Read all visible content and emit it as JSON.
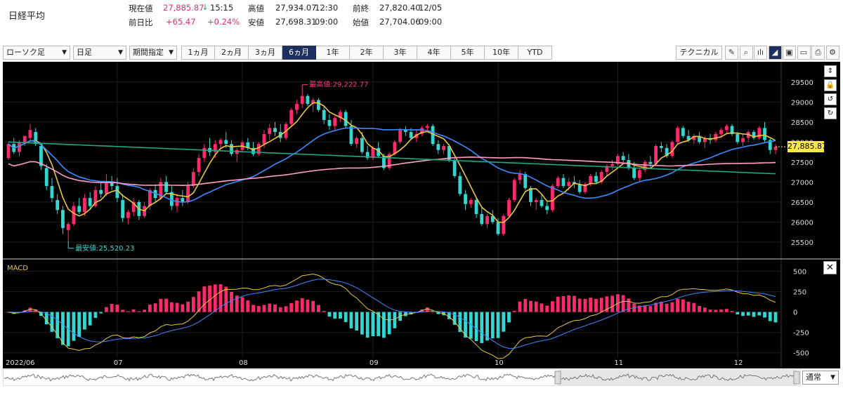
{
  "quote": {
    "name": "日経平均",
    "current_label": "現在値",
    "current_value": "27,885.87",
    "arrow": "↓",
    "current_time": "15:15",
    "high_label": "高値",
    "high_value": "27,934.07",
    "high_time": "12:30",
    "prev_close_label": "前終",
    "prev_close_value": "27,820.40",
    "prev_close_date": "12/05",
    "change_label": "前日比",
    "change_value": "+65.47",
    "change_pct": "+0.24%",
    "low_label": "安値",
    "low_value": "27,698.31",
    "low_time": "09:00",
    "open_label": "始値",
    "open_value": "27,704.06",
    "open_time": "09:00"
  },
  "toolbar": {
    "chart_type": "ローソク足",
    "interval": "日足",
    "period_select": "期間指定",
    "periods": [
      "1ヵ月",
      "2ヵ月",
      "3ヵ月",
      "6ヵ月",
      "1年",
      "2年",
      "3年",
      "4年",
      "5年",
      "10年",
      "YTD"
    ],
    "active_period": "6ヵ月",
    "technical": "テクニカル",
    "tools": [
      {
        "icon": "pencil-icon",
        "glyph": "✎"
      },
      {
        "icon": "zoom-icon",
        "glyph": "⌕"
      },
      {
        "icon": "candle-chart-icon",
        "glyph": "ılı"
      },
      {
        "icon": "area-chart-icon",
        "glyph": "◢"
      },
      {
        "icon": "save-icon",
        "glyph": "▣"
      },
      {
        "icon": "folder-icon",
        "glyph": "▭"
      },
      {
        "icon": "print-icon",
        "glyph": "⎙"
      },
      {
        "icon": "gear-icon",
        "glyph": "⚙"
      }
    ]
  },
  "chart_data": {
    "type": "candlestick",
    "current_price_label": "27,885.87",
    "high_annotation": "最高値:29,222.77",
    "low_annotation": "最安値:25,520.23",
    "price_ylim": [
      25200,
      29900
    ],
    "price_ticks": [
      "29500",
      "29000",
      "28500",
      "28000",
      "27500",
      "27000",
      "26500",
      "26000",
      "25500"
    ],
    "macd_label": "MACD",
    "macd_ylim": [
      -650,
      600
    ],
    "macd_ticks": [
      "500",
      "250",
      "0",
      "-250",
      "-500"
    ],
    "x_labels": [
      "2022/06",
      "07",
      "08",
      "09",
      "10",
      "11",
      "12"
    ],
    "month_start_index": [
      0,
      20,
      43,
      67,
      90,
      112,
      134
    ],
    "candles": [
      [
        27600,
        28000,
        27550,
        27950
      ],
      [
        27950,
        28100,
        27700,
        27750
      ],
      [
        27750,
        28050,
        27650,
        28000
      ],
      [
        28000,
        28150,
        27900,
        28150
      ],
      [
        28100,
        28450,
        28000,
        28300
      ],
      [
        28250,
        28350,
        27900,
        27950
      ],
      [
        27900,
        27950,
        27300,
        27400
      ],
      [
        27350,
        27450,
        26800,
        26900
      ],
      [
        26900,
        27100,
        26500,
        26600
      ],
      [
        26550,
        26700,
        26200,
        26300
      ],
      [
        26300,
        26400,
        25700,
        25850
      ],
      [
        25800,
        26000,
        25520,
        25950
      ],
      [
        25950,
        26500,
        25900,
        26400
      ],
      [
        26400,
        26600,
        26200,
        26250
      ],
      [
        26250,
        26700,
        26150,
        26600
      ],
      [
        26600,
        26750,
        26300,
        26400
      ],
      [
        26400,
        26900,
        26350,
        26800
      ],
      [
        26800,
        27000,
        26600,
        26700
      ],
      [
        26700,
        27200,
        26650,
        27000
      ],
      [
        27000,
        27150,
        26800,
        26900
      ],
      [
        26900,
        27100,
        26500,
        26600
      ],
      [
        26550,
        26700,
        26000,
        26100
      ],
      [
        26100,
        26300,
        25950,
        26250
      ],
      [
        26250,
        26600,
        26150,
        26500
      ],
      [
        26500,
        26550,
        26050,
        26150
      ],
      [
        26150,
        26500,
        26100,
        26400
      ],
      [
        26400,
        26850,
        26300,
        26800
      ],
      [
        26800,
        26950,
        26500,
        26600
      ],
      [
        26600,
        27100,
        26550,
        27000
      ],
      [
        27000,
        27150,
        26700,
        26750
      ],
      [
        26750,
        26900,
        26300,
        26400
      ],
      [
        26400,
        26700,
        26250,
        26600
      ],
      [
        26600,
        26800,
        26400,
        26500
      ],
      [
        26500,
        27000,
        26450,
        26900
      ],
      [
        26900,
        27350,
        26850,
        27250
      ],
      [
        27250,
        27700,
        27150,
        27600
      ],
      [
        27600,
        27950,
        27500,
        27850
      ],
      [
        27850,
        28100,
        27650,
        27750
      ],
      [
        27750,
        28050,
        27600,
        27950
      ],
      [
        27950,
        28100,
        27800,
        28050
      ],
      [
        28050,
        28250,
        27850,
        27950
      ],
      [
        27950,
        28050,
        27650,
        27700
      ],
      [
        27700,
        27850,
        27500,
        27800
      ],
      [
        27800,
        28050,
        27750,
        27990
      ],
      [
        27990,
        28100,
        27800,
        27850
      ],
      [
        27850,
        28000,
        27650,
        27700
      ],
      [
        27700,
        28000,
        27650,
        27950
      ],
      [
        27950,
        28300,
        27850,
        28200
      ],
      [
        28200,
        28450,
        28050,
        28350
      ],
      [
        28350,
        28500,
        28150,
        28250
      ],
      [
        28250,
        28450,
        28000,
        28100
      ],
      [
        28100,
        28500,
        28050,
        28450
      ],
      [
        28450,
        28850,
        28400,
        28800
      ],
      [
        28800,
        29050,
        28700,
        28950
      ],
      [
        28950,
        29222,
        28850,
        29150
      ],
      [
        29150,
        29200,
        28900,
        28950
      ],
      [
        28950,
        29100,
        28750,
        29050
      ],
      [
        29050,
        29100,
        28750,
        28800
      ],
      [
        28800,
        28900,
        28450,
        28550
      ],
      [
        28550,
        28700,
        28300,
        28400
      ],
      [
        28400,
        28650,
        28300,
        28600
      ],
      [
        28600,
        28800,
        28500,
        28750
      ],
      [
        28750,
        28800,
        28350,
        28400
      ],
      [
        28400,
        28550,
        27900,
        27950
      ],
      [
        27950,
        28150,
        27850,
        28100
      ],
      [
        28100,
        28250,
        27700,
        27750
      ],
      [
        27750,
        27900,
        27550,
        27600
      ],
      [
        27600,
        27900,
        27550,
        27850
      ],
      [
        27850,
        28000,
        27600,
        27650
      ],
      [
        27650,
        27700,
        27300,
        27350
      ],
      [
        27350,
        27750,
        27300,
        27700
      ],
      [
        27700,
        28050,
        27650,
        28000
      ],
      [
        28000,
        28350,
        27950,
        28300
      ],
      [
        28300,
        28400,
        28150,
        28250
      ],
      [
        28250,
        28350,
        28050,
        28100
      ],
      [
        28100,
        28300,
        28000,
        28200
      ],
      [
        28200,
        28400,
        28150,
        28350
      ],
      [
        28350,
        28450,
        28250,
        28400
      ],
      [
        28400,
        28450,
        27900,
        27950
      ],
      [
        27950,
        28050,
        27700,
        27800
      ],
      [
        27800,
        27950,
        27700,
        27900
      ],
      [
        27900,
        27950,
        27500,
        27550
      ],
      [
        27550,
        27600,
        27100,
        27150
      ],
      [
        27150,
        27250,
        26650,
        26700
      ],
      [
        26700,
        26800,
        26300,
        26450
      ],
      [
        26450,
        26600,
        26350,
        26550
      ],
      [
        26550,
        26600,
        26100,
        26200
      ],
      [
        26200,
        26350,
        25900,
        25950
      ],
      [
        25950,
        26200,
        25850,
        26150
      ],
      [
        26150,
        26300,
        25950,
        26000
      ],
      [
        26000,
        26100,
        25650,
        25700
      ],
      [
        25700,
        26200,
        25650,
        26150
      ],
      [
        26150,
        26600,
        26100,
        26550
      ],
      [
        26550,
        27100,
        26500,
        27050
      ],
      [
        27050,
        27300,
        26950,
        27200
      ],
      [
        27200,
        27250,
        26800,
        26850
      ],
      [
        26850,
        26900,
        26400,
        26500
      ],
      [
        26500,
        26600,
        26300,
        26550
      ],
      [
        26550,
        26700,
        26350,
        26400
      ],
      [
        26400,
        26500,
        26200,
        26300
      ],
      [
        26300,
        26950,
        26250,
        26900
      ],
      [
        26900,
        27150,
        26850,
        27100
      ],
      [
        27100,
        27200,
        26850,
        26900
      ],
      [
        26900,
        27100,
        26800,
        27000
      ],
      [
        27000,
        27150,
        26850,
        26950
      ],
      [
        26950,
        27050,
        26700,
        26750
      ],
      [
        26750,
        27000,
        26700,
        26950
      ],
      [
        26950,
        27200,
        26900,
        27150
      ],
      [
        27150,
        27250,
        26950,
        27000
      ],
      [
        27000,
        27300,
        26950,
        27250
      ],
      [
        27250,
        27450,
        27150,
        27400
      ],
      [
        27400,
        27550,
        27300,
        27450
      ],
      [
        27450,
        27700,
        27400,
        27650
      ],
      [
        27650,
        27750,
        27500,
        27550
      ],
      [
        27550,
        27700,
        27300,
        27350
      ],
      [
        27350,
        27500,
        27050,
        27100
      ],
      [
        27100,
        27350,
        27000,
        27300
      ],
      [
        27300,
        27550,
        27250,
        27500
      ],
      [
        27500,
        27650,
        27350,
        27450
      ],
      [
        27450,
        27950,
        27400,
        27900
      ],
      [
        27900,
        28000,
        27750,
        27850
      ],
      [
        27850,
        27950,
        27600,
        27650
      ],
      [
        27650,
        28050,
        27600,
        28000
      ],
      [
        28000,
        28400,
        27950,
        28350
      ],
      [
        28350,
        28400,
        28100,
        28150
      ],
      [
        28150,
        28300,
        28000,
        28050
      ],
      [
        28050,
        28200,
        27950,
        28150
      ],
      [
        28150,
        28250,
        27950,
        28000
      ],
      [
        28000,
        28150,
        27850,
        28100
      ],
      [
        28100,
        28200,
        27950,
        28050
      ],
      [
        28050,
        28250,
        28000,
        28200
      ],
      [
        28200,
        28350,
        28100,
        28300
      ],
      [
        28300,
        28450,
        28200,
        28400
      ],
      [
        28400,
        28450,
        28150,
        28200
      ],
      [
        28200,
        28250,
        27950,
        28000
      ],
      [
        28000,
        28200,
        27900,
        28100
      ],
      [
        28100,
        28300,
        28000,
        28250
      ],
      [
        28250,
        28300,
        28050,
        28100
      ],
      [
        28100,
        28400,
        28050,
        28350
      ],
      [
        28350,
        28500,
        28000,
        28050
      ],
      [
        28050,
        28100,
        27700,
        27800
      ],
      [
        27800,
        27950,
        27700,
        27880
      ]
    ]
  },
  "navigator": {
    "mode": "通常"
  }
}
